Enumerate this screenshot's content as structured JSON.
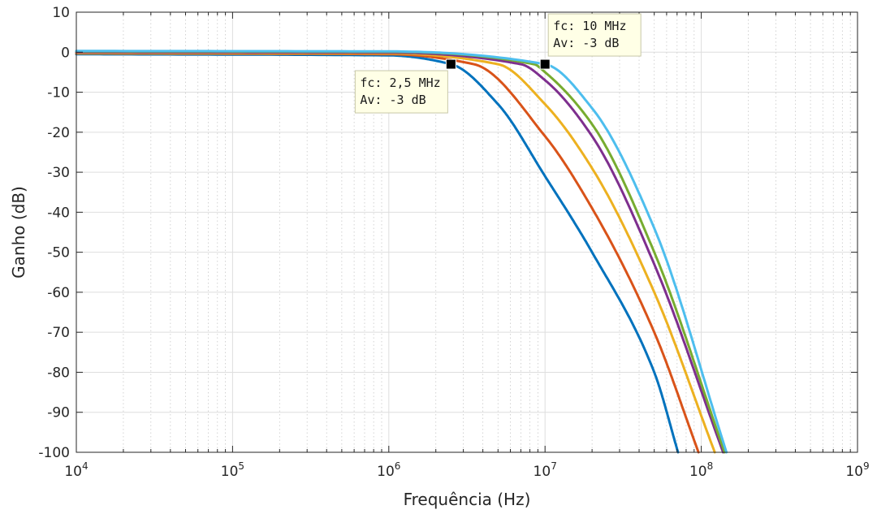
{
  "chart_data": {
    "type": "line",
    "xlabel": "Frequência (Hz)",
    "ylabel": "Ganho (dB)",
    "xscale": "log",
    "xlim": [
      10000,
      1000000000
    ],
    "ylim": [
      -100,
      10
    ],
    "x_ticks": [
      {
        "base": "10",
        "exp": "4"
      },
      {
        "base": "10",
        "exp": "5"
      },
      {
        "base": "10",
        "exp": "6"
      },
      {
        "base": "10",
        "exp": "7"
      },
      {
        "base": "10",
        "exp": "8"
      },
      {
        "base": "10",
        "exp": "9"
      }
    ],
    "y_ticks": [
      "10",
      "0",
      "-10",
      "-20",
      "-30",
      "-40",
      "-50",
      "-60",
      "-70",
      "-80",
      "-90",
      "-100"
    ],
    "grid": true,
    "minor_grid": true,
    "series": [
      {
        "color": "#0072BD",
        "fc": 2500000,
        "order": 4,
        "x": [
          10000,
          1000000,
          2500000,
          5000000,
          10000000,
          20000000,
          50000000,
          71000000
        ],
        "y": [
          -0.5,
          -0.8,
          -3,
          -13,
          -31,
          -50,
          -80,
          -100
        ]
      },
      {
        "color": "#D95319",
        "fc": 3500000,
        "order": 4,
        "x": [
          10000,
          1000000,
          3500000,
          10000000,
          20000000,
          50000000,
          96000000
        ],
        "y": [
          -0.3,
          -0.5,
          -3,
          -21,
          -39,
          -70,
          -100
        ]
      },
      {
        "color": "#EDB120",
        "fc": 5000000,
        "order": 4,
        "x": [
          10000,
          1000000,
          5000000,
          10000000,
          20000000,
          50000000,
          122000000
        ],
        "y": [
          -0.2,
          -0.3,
          -3,
          -13,
          -29,
          -60,
          -100
        ]
      },
      {
        "color": "#7E2F8E",
        "fc": 7000000,
        "order": 4,
        "x": [
          10000,
          1000000,
          7000000,
          10000000,
          20000000,
          50000000,
          138000000
        ],
        "y": [
          0,
          -0.1,
          -3,
          -7,
          -21,
          -53,
          -100
        ]
      },
      {
        "color": "#77AC30",
        "fc": 8500000,
        "order": 4,
        "x": [
          10000,
          1000000,
          8500000,
          10000000,
          20000000,
          50000000,
          141000000
        ],
        "y": [
          0.2,
          0.1,
          -3,
          -5,
          -18,
          -50,
          -100
        ]
      },
      {
        "color": "#4DBEEE",
        "fc": 10000000,
        "order": 4,
        "x": [
          10000,
          1000000,
          10000000,
          20000000,
          50000000,
          145000000
        ],
        "y": [
          0.3,
          0.2,
          -3,
          -14,
          -44,
          -100
        ]
      }
    ],
    "datatips": [
      {
        "x": 2500000,
        "y": -3,
        "line1": "fc: 2,5 MHz",
        "line2": "Av: -3 dB",
        "placement": "below-left"
      },
      {
        "x": 10000000,
        "y": -3,
        "line1": "fc: 10 MHz",
        "line2": "Av: -3 dB",
        "placement": "above-right"
      }
    ]
  }
}
